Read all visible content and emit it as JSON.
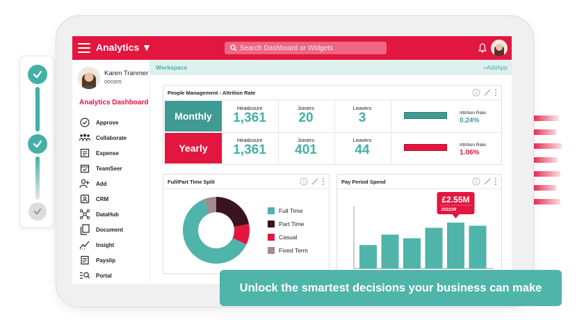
{
  "header": {
    "app_title": "Analytics ▼",
    "search_placeholder": "Search Dashboard or Widgets"
  },
  "user": {
    "name": "Karen Tranmer",
    "id": "000305"
  },
  "sidebar": {
    "heading": "Analytics Dashboard",
    "items": [
      {
        "label": "Approve",
        "icon": "check-circle-icon"
      },
      {
        "label": "Collaborate",
        "icon": "people-icon"
      },
      {
        "label": "Expense",
        "icon": "receipt-icon"
      },
      {
        "label": "TeamSeer",
        "icon": "calendar-check-icon"
      },
      {
        "label": "Add",
        "icon": "add-user-icon"
      },
      {
        "label": "CRM",
        "icon": "contact-card-icon"
      },
      {
        "label": "DataHub",
        "icon": "network-icon"
      },
      {
        "label": "Document",
        "icon": "documents-icon"
      },
      {
        "label": "Insight",
        "icon": "trend-icon"
      },
      {
        "label": "Payslip",
        "icon": "payslip-icon"
      },
      {
        "label": "Portal",
        "icon": "portal-search-icon"
      }
    ]
  },
  "workspace": {
    "label": "Workspace",
    "add_app": "+AddApp"
  },
  "attrition": {
    "title": "People Management - Attrition Rate",
    "rows": [
      {
        "label": "Monthly",
        "headcount_label": "Headcount",
        "headcount": "1,361",
        "joiners_label": "Joiners",
        "joiners": "20",
        "leavers_label": "Leavers",
        "leavers": "3",
        "rate_label": "Attrition Rate:",
        "rate": "0.24%"
      },
      {
        "label": "Yearly",
        "headcount_label": "Headcount",
        "headcount": "1,361",
        "joiners_label": "Joiners",
        "joiners": "401",
        "leavers_label": "Leavers",
        "leavers": "44",
        "rate_label": "Attrition Rate:",
        "rate": "1.06%"
      }
    ]
  },
  "split": {
    "title": "Full/Part Time Split",
    "legend": [
      {
        "label": "Full Time",
        "color": "#4fb4aa"
      },
      {
        "label": "Part Time",
        "color": "#3b1220"
      },
      {
        "label": "Casual",
        "color": "#e3163f"
      },
      {
        "label": "Fixed Term",
        "color": "#a38a8f"
      }
    ]
  },
  "spend": {
    "title": "Pay Period Spend",
    "callout_value": "£2.55M",
    "callout_period": "202239"
  },
  "cta": {
    "text": "Unlock the smartest decisions your business can make"
  },
  "colors": {
    "accent_red": "#e3163f",
    "accent_teal": "#42b0a6"
  },
  "chart_data": [
    {
      "type": "pie",
      "labels": [
        "Full Time",
        "Part Time",
        "Casual",
        "Fixed Term"
      ],
      "values": [
        62,
        22,
        10,
        6
      ],
      "title": "Full/Part Time Split"
    },
    {
      "type": "bar",
      "categories": [
        "1",
        "2",
        "3",
        "4",
        "5",
        "6"
      ],
      "values": [
        45,
        65,
        58,
        78,
        88,
        82
      ],
      "title": "Pay Period Spend",
      "ylim": [
        0,
        140
      ]
    }
  ]
}
